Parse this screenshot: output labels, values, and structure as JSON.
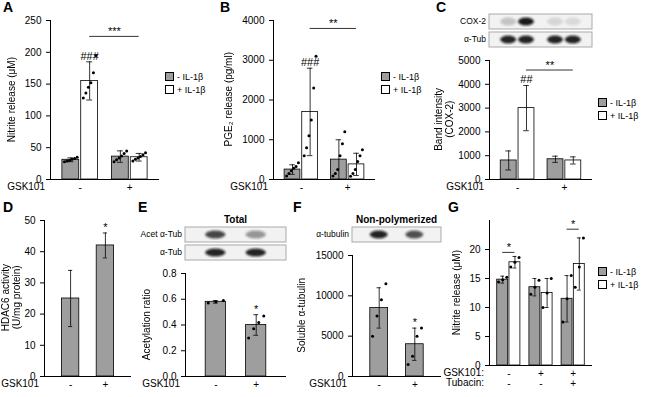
{
  "chart_data": [
    {
      "panel": "A",
      "type": "bar",
      "x_label": "GSK101",
      "categories": [
        "-",
        "+"
      ],
      "ylabel": "Nitrite release (μM)",
      "ylim": [
        0,
        250
      ],
      "yticks": [
        0,
        50,
        100,
        150,
        200,
        250
      ],
      "legend": "right",
      "series": [
        {
          "name": "- IL-1β",
          "color": "#9e9e9e",
          "values": [
            31,
            36
          ],
          "errors": [
            3,
            9
          ],
          "points": [
            [
              28,
              29,
              30,
              32,
              33,
              35
            ],
            [
              28,
              31,
              34,
              37,
              41,
              45
            ]
          ]
        },
        {
          "name": "+ IL-1β",
          "color": "#ffffff",
          "values": [
            155,
            35
          ],
          "errors": [
            30,
            6
          ],
          "points": [
            [
              128,
              136,
              145,
              152,
              168,
              195
            ],
            [
              29,
              32,
              34,
              36,
              39,
              42
            ]
          ]
        }
      ],
      "annotations": [
        {
          "text": "###",
          "at": [
            0,
            1
          ]
        },
        {
          "text": "***",
          "from": [
            0,
            1
          ],
          "to": [
            1,
            1
          ],
          "y": 225
        }
      ]
    },
    {
      "panel": "B",
      "type": "bar",
      "x_label": "GSK101",
      "categories": [
        "-",
        "+"
      ],
      "ylabel": "PGE₂ release (pg/ml)",
      "ylim": [
        0,
        4000
      ],
      "yticks": [
        0,
        1000,
        2000,
        3000,
        4000
      ],
      "legend": "right",
      "series": [
        {
          "name": "- IL-1β",
          "color": "#9e9e9e",
          "values": [
            250,
            500
          ],
          "errors": [
            120,
            500
          ],
          "points": [
            [
              90,
              150,
              220,
              280,
              330,
              420
            ],
            [
              90,
              150,
              250,
              600,
              900,
              1200
            ]
          ]
        },
        {
          "name": "+ IL-1β",
          "color": "#ffffff",
          "values": [
            1700,
            380
          ],
          "errors": [
            1100,
            280
          ],
          "points": [
            [
              600,
              800,
              1100,
              1500,
              2300,
              3100
            ],
            [
              80,
              150,
              250,
              450,
              600,
              750
            ]
          ]
        }
      ],
      "annotations": [
        {
          "text": "###",
          "at": [
            0,
            1
          ]
        },
        {
          "text": "**",
          "from": [
            0,
            1
          ],
          "to": [
            1,
            1
          ],
          "y": 3800
        }
      ]
    },
    {
      "panel": "C",
      "type": "bar",
      "x_label": "GSK101",
      "categories": [
        "-",
        "+"
      ],
      "ylabel": "Band intensity\n(COX-2)",
      "ylim": [
        0,
        5000
      ],
      "yticks": [
        0,
        1000,
        2000,
        3000,
        4000,
        5000
      ],
      "legend": "right",
      "blots": [
        {
          "label": "COX-2"
        },
        {
          "label": "α-Tub"
        }
      ],
      "series": [
        {
          "name": "- IL-1β",
          "color": "#9e9e9e",
          "values": [
            800,
            850
          ],
          "errors": [
            400,
            130
          ]
        },
        {
          "name": "+ IL-1β",
          "color": "#ffffff",
          "values": [
            3000,
            800
          ],
          "errors": [
            950,
            150
          ]
        }
      ],
      "annotations": [
        {
          "text": "##",
          "at": [
            0,
            1
          ]
        },
        {
          "text": "**",
          "from": [
            0,
            1
          ],
          "to": [
            1,
            1
          ],
          "y": 4600
        }
      ]
    },
    {
      "panel": "D",
      "type": "bar",
      "x_label": "GSK101",
      "categories": [
        "-",
        "+"
      ],
      "ylabel": "HDAC6 activity\n(U/mg protein)",
      "ylim": [
        0,
        50
      ],
      "yticks": [
        0,
        10,
        20,
        30,
        40,
        50
      ],
      "series": [
        {
          "color": "#9e9e9e",
          "values": [
            25,
            42
          ],
          "errors": [
            9,
            4
          ]
        }
      ],
      "annotations": [
        {
          "text": "*",
          "at": [
            1,
            0
          ]
        }
      ]
    },
    {
      "panel": "E",
      "type": "bar",
      "subtitle": "Total",
      "x_label": "GSK101",
      "categories": [
        "-",
        "+"
      ],
      "ylabel": "Acetylation ratio",
      "ylim": [
        0,
        0.8
      ],
      "yticks": [
        {
          "value": 0,
          "label": "0.0"
        },
        {
          "value": 0.2,
          "label": "0.2"
        },
        {
          "value": 0.4,
          "label": "0.4"
        },
        {
          "value": 0.6,
          "label": "0.6"
        },
        {
          "value": 0.8,
          "label": "0.8"
        }
      ],
      "blots": [
        {
          "label": "Acet α-Tub"
        },
        {
          "label": "α-Tub"
        }
      ],
      "series": [
        {
          "color": "#9e9e9e",
          "values": [
            0.58,
            0.4
          ],
          "errors": [
            0.01,
            0.08
          ],
          "points": [
            [
              0.57,
              0.58,
              0.59
            ],
            [
              0.3,
              0.37,
              0.42,
              0.47
            ]
          ]
        }
      ],
      "annotations": [
        {
          "text": "*",
          "at": [
            1,
            0
          ]
        }
      ]
    },
    {
      "panel": "F",
      "type": "bar",
      "subtitle": "Non-polymerized",
      "x_label": "GSK101",
      "categories": [
        "-",
        "+"
      ],
      "ylabel": "Soluble α-tubulin",
      "ylim": [
        0,
        15000
      ],
      "yticks": [
        0,
        5000,
        10000,
        15000
      ],
      "blots": [
        {
          "label": "α-tubulin"
        }
      ],
      "series": [
        {
          "color": "#9e9e9e",
          "values": [
            8500,
            4000
          ],
          "errors": [
            2500,
            2000
          ],
          "points": [
            [
              5000,
              7500,
              9500,
              11500
            ],
            [
              1500,
              2500,
              5000,
              6000
            ]
          ]
        }
      ],
      "annotations": [
        {
          "text": "*",
          "at": [
            1,
            0
          ]
        }
      ]
    },
    {
      "panel": "G",
      "type": "bar",
      "x_label": "GSK101:",
      "categories": [
        "-",
        "+",
        "+"
      ],
      "x_label_2": "Tubacin:",
      "categories_2": [
        "-",
        "-",
        "+"
      ],
      "ylabel": "Nitrite release (μM)",
      "ylim": [
        0,
        25
      ],
      "yticks": [
        0,
        5,
        10,
        15,
        20
      ],
      "legend": "right",
      "series": [
        {
          "name": "- IL-1β",
          "color": "#9e9e9e",
          "values": [
            14.8,
            13.5,
            11.5
          ],
          "errors": [
            0.6,
            1.5,
            4
          ],
          "points": [
            [
              14.4,
              14.8,
              15.2
            ],
            [
              12.3,
              13.5,
              14.7
            ],
            [
              7.5,
              11.5,
              15.5
            ]
          ]
        },
        {
          "name": "+ IL-1β",
          "color": "#ffffff",
          "values": [
            17.8,
            12.5,
            17.5
          ],
          "errors": [
            1,
            2.5,
            4.5
          ],
          "points": [
            [
              17,
              17.8,
              18.6
            ],
            [
              10,
              12.5,
              15
            ],
            [
              13.5,
              17,
              22
            ]
          ]
        }
      ],
      "annotations": [
        {
          "text": "*",
          "from": [
            0,
            0
          ],
          "to": [
            0,
            1
          ],
          "y": 19.5
        },
        {
          "text": "*",
          "from": [
            2,
            0
          ],
          "to": [
            2,
            1
          ],
          "y": 23.5
        }
      ]
    }
  ]
}
